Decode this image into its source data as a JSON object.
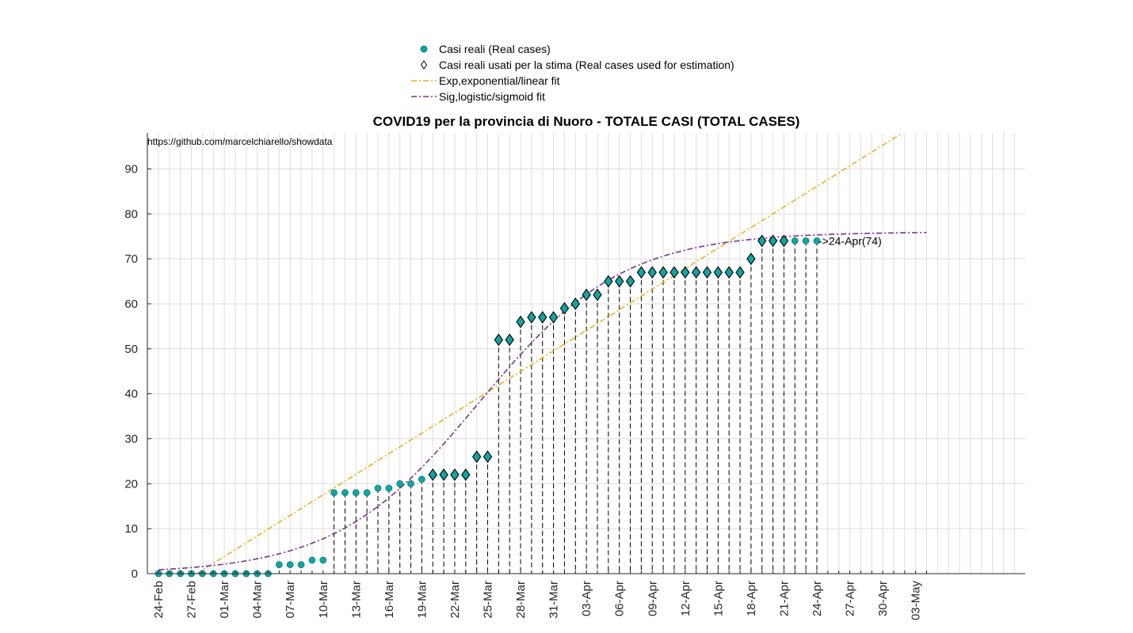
{
  "chart_data": {
    "type": "scatter",
    "title": "COVID19 per la provincia di Nuoro - TOTALE CASI (TOTAL CASES)",
    "source_note": "https://github.com/marcelchiarello/showdata",
    "xlabel": "",
    "ylabel": "",
    "ylim": [
      0,
      98
    ],
    "yticks": [
      0,
      10,
      20,
      30,
      40,
      50,
      60,
      70,
      80,
      90
    ],
    "x_start_date": "24-Feb",
    "x_tick_labels": [
      "24-Feb",
      "27-Feb",
      "01-Mar",
      "04-Mar",
      "07-Mar",
      "10-Mar",
      "13-Mar",
      "16-Mar",
      "19-Mar",
      "22-Mar",
      "25-Mar",
      "28-Mar",
      "31-Mar",
      "03-Apr",
      "06-Apr",
      "09-Apr",
      "12-Apr",
      "15-Apr",
      "18-Apr",
      "21-Apr",
      "24-Apr",
      "27-Apr",
      "30-Apr",
      "03-May"
    ],
    "grid": true,
    "legend_position": "top-center",
    "legend": [
      {
        "label": "Casi reali (Real cases)",
        "kind": "dot"
      },
      {
        "label": "Casi reali usati per la stima (Real cases used for estimation)",
        "kind": "diamond"
      },
      {
        "label": "Exp,exponential/linear fit",
        "kind": "dashdot-orange"
      },
      {
        "label": "Sig,logistic/sigmoid fit",
        "kind": "dashdot-purple"
      }
    ],
    "series": [
      {
        "name": "Casi reali (Real cases)",
        "values": [
          0,
          0,
          0,
          0,
          0,
          0,
          0,
          0,
          0,
          0,
          0,
          2,
          2,
          2,
          3,
          3,
          18,
          18,
          18,
          18,
          19,
          19,
          20,
          20,
          21,
          22,
          22,
          22,
          22,
          26,
          26,
          52,
          52,
          56,
          57,
          57,
          57,
          59,
          60,
          62,
          62,
          65,
          65,
          65,
          67,
          67,
          67,
          67,
          67,
          67,
          67,
          67,
          67,
          67,
          70,
          74,
          74,
          74,
          74,
          74,
          74
        ]
      },
      {
        "name": "Casi reali usati per la stima (Real cases used for estimation)",
        "start_index": 25,
        "end_index": 57
      },
      {
        "name": "Exp,exponential/linear fit",
        "kind": "linear",
        "points": [
          [
            3.5,
            0
          ],
          [
            67.8,
            98
          ]
        ]
      },
      {
        "name": "Sig,logistic/sigmoid fit",
        "kind": "logistic",
        "L": 76,
        "k": 0.153,
        "x0": 29.2
      }
    ],
    "annotation": {
      "text": "->24-Apr(74)",
      "index": 60,
      "value": 74
    },
    "stem_range": [
      16,
      60
    ],
    "x_max_index": 70,
    "x_end_index": 79
  },
  "colors": {
    "teal": "#14a3a3",
    "teal_dark": "#0f7f7f",
    "orange": "#edb120",
    "purple": "#7e2f8e",
    "grid": "#dedede",
    "axis": "#262626"
  }
}
